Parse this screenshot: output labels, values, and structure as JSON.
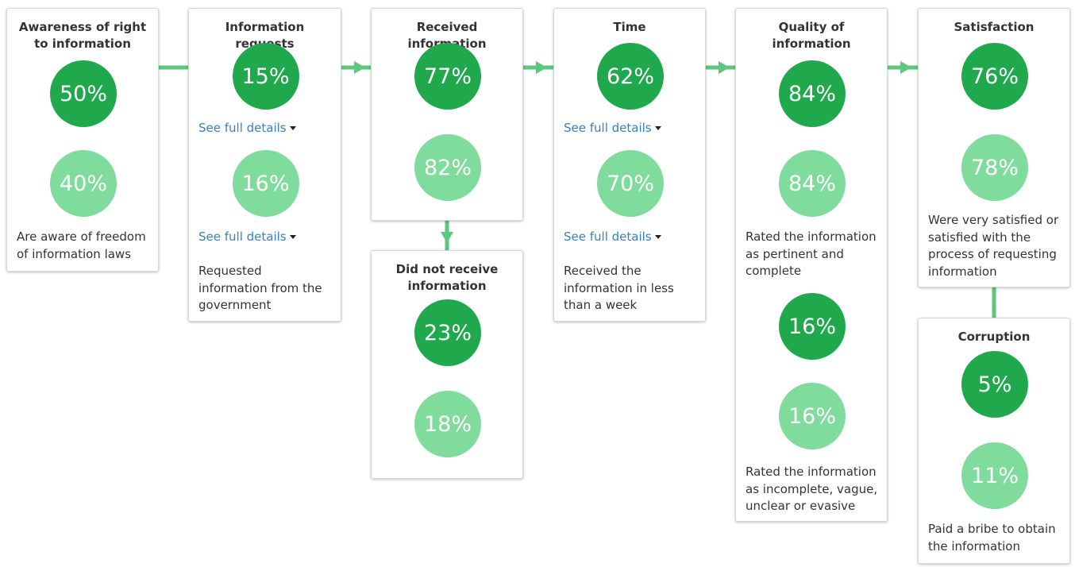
{
  "cards": [
    {
      "title": "Awareness of right to information",
      "items": [
        {
          "circle": "50%",
          "shade": "dark"
        },
        {
          "circle": "40%",
          "shade": "light"
        },
        {
          "text": "Are aware of freedom of information laws"
        }
      ]
    },
    {
      "title": "Information requests",
      "items": [
        {
          "circle": "15%",
          "shade": "dark"
        },
        {
          "link": "See full details"
        },
        {
          "circle": "16%",
          "shade": "light"
        },
        {
          "link": "See full details"
        },
        {
          "text": "Requested information from the government"
        }
      ]
    },
    {
      "title": "Received information",
      "items": [
        {
          "circle": "77%",
          "shade": "dark"
        },
        {
          "circle": "82%",
          "shade": "light"
        }
      ]
    },
    {
      "title": "Did not receive information",
      "items": [
        {
          "circle": "23%",
          "shade": "dark"
        },
        {
          "circle": "18%",
          "shade": "light"
        }
      ]
    },
    {
      "title": "Time",
      "items": [
        {
          "circle": "62%",
          "shade": "dark"
        },
        {
          "link": "See full details"
        },
        {
          "circle": "70%",
          "shade": "light"
        },
        {
          "link": "See full details"
        },
        {
          "text": "Received the information in less than a week"
        }
      ]
    },
    {
      "title": "Quality of information",
      "items": [
        {
          "circle": "84%",
          "shade": "dark"
        },
        {
          "circle": "84%",
          "shade": "light"
        },
        {
          "text": "Rated the information as pertinent and complete"
        },
        {
          "circle": "16%",
          "shade": "dark"
        },
        {
          "circle": "16%",
          "shade": "light"
        },
        {
          "text": "Rated the information as incomplete, vague, unclear or evasive"
        }
      ]
    },
    {
      "title": "Satisfaction",
      "items": [
        {
          "circle": "76%",
          "shade": "dark"
        },
        {
          "circle": "78%",
          "shade": "light"
        },
        {
          "text": "Were very satisfied or satisfied with the process of requesting information"
        }
      ]
    },
    {
      "title": "Corruption",
      "items": [
        {
          "circle": "5%",
          "shade": "dark"
        },
        {
          "circle": "11%",
          "shade": "light"
        },
        {
          "text": "Paid a bribe to obtain the information"
        }
      ]
    }
  ]
}
